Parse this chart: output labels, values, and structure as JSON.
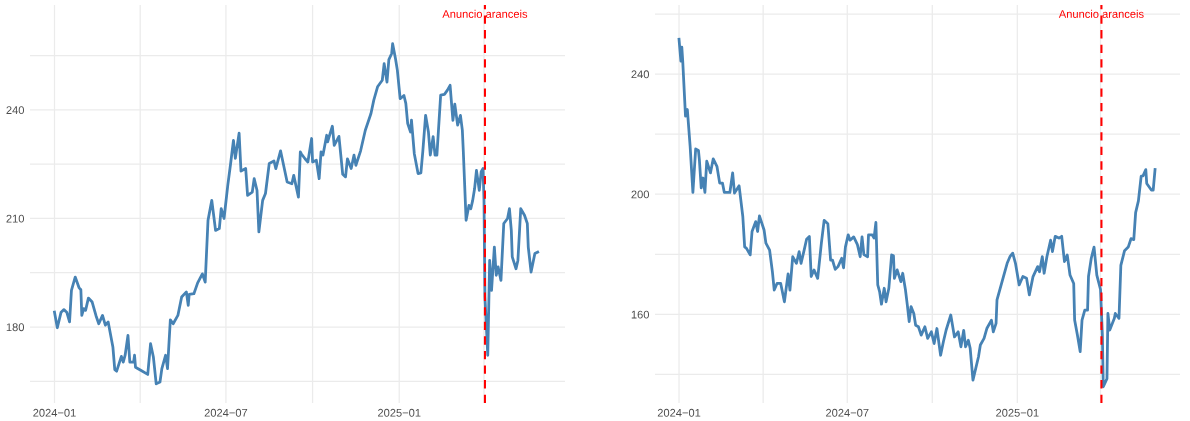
{
  "chart_data": [
    {
      "type": "line",
      "x": [
        "2024-01-01",
        "2024-01-04",
        "2024-01-08",
        "2024-01-11",
        "2024-01-14",
        "2024-01-17",
        "2024-01-19",
        "2024-01-23",
        "2024-01-27",
        "2024-01-29",
        "2024-01-30",
        "2024-02-01",
        "2024-02-03",
        "2024-02-06",
        "2024-02-10",
        "2024-02-14",
        "2024-02-17",
        "2024-02-21",
        "2024-02-24",
        "2024-02-27",
        "2024-03-03",
        "2024-03-05",
        "2024-03-07",
        "2024-03-12",
        "2024-03-14",
        "2024-03-16",
        "2024-03-19",
        "2024-03-21",
        "2024-03-25",
        "2024-03-26",
        "2024-03-27",
        "2024-04-02",
        "2024-04-09",
        "2024-04-12",
        "2024-04-15",
        "2024-04-18",
        "2024-04-22",
        "2024-04-24",
        "2024-04-28",
        "2024-04-30",
        "2024-05-03",
        "2024-05-06",
        "2024-05-11",
        "2024-05-15",
        "2024-05-20",
        "2024-05-22",
        "2024-05-23",
        "2024-05-28",
        "2024-06-01",
        "2024-06-06",
        "2024-06-09",
        "2024-06-12",
        "2024-06-16",
        "2024-06-20",
        "2024-06-24",
        "2024-06-26",
        "2024-06-29",
        "2024-07-03",
        "2024-07-06",
        "2024-07-09",
        "2024-07-11",
        "2024-07-15",
        "2024-07-17",
        "2024-07-22",
        "2024-07-24",
        "2024-07-29",
        "2024-07-31",
        "2024-08-03",
        "2024-08-05",
        "2024-08-09",
        "2024-08-12",
        "2024-08-16",
        "2024-08-21",
        "2024-08-23",
        "2024-08-28",
        "2024-09-04",
        "2024-09-09",
        "2024-09-11",
        "2024-09-16",
        "2024-09-18",
        "2024-09-19",
        "2024-09-23",
        "2024-09-26",
        "2024-09-30",
        "2024-10-01",
        "2024-10-05",
        "2024-10-08",
        "2024-10-10",
        "2024-10-12",
        "2024-10-16",
        "2024-10-17",
        "2024-10-22",
        "2024-10-24",
        "2024-10-29",
        "2024-11-02",
        "2024-11-05",
        "2024-11-07",
        "2024-11-11",
        "2024-11-14",
        "2024-11-16",
        "2024-11-21",
        "2024-11-26",
        "2024-12-02",
        "2024-12-05",
        "2024-12-09",
        "2024-12-14",
        "2024-12-16",
        "2024-12-19",
        "2024-12-21",
        "2024-12-24",
        "2024-12-25",
        "2024-12-28",
        "2024-12-30",
        "2025-01-02",
        "2025-01-06",
        "2025-01-08",
        "2025-01-10",
        "2025-01-13",
        "2025-01-14",
        "2025-01-17",
        "2025-01-21",
        "2025-01-24",
        "2025-01-26",
        "2025-01-29",
        "2025-02-01",
        "2025-02-03",
        "2025-02-06",
        "2025-02-08",
        "2025-02-10",
        "2025-02-14",
        "2025-02-18",
        "2025-02-21",
        "2025-02-24",
        "2025-02-27",
        "2025-03-01",
        "2025-03-04",
        "2025-03-07",
        "2025-03-09",
        "2025-03-10",
        "2025-03-13",
        "2025-03-16",
        "2025-03-18",
        "2025-03-20",
        "2025-03-22",
        "2025-03-24",
        "2025-03-27",
        "2025-03-29",
        "2025-03-31",
        "2025-04-01",
        "2025-04-02",
        "2025-04-05",
        "2025-04-07",
        "2025-04-09",
        "2025-04-12",
        "2025-04-14",
        "2025-04-16",
        "2025-04-19",
        "2025-04-22",
        "2025-04-26",
        "2025-04-28",
        "2025-04-30",
        "2025-05-01",
        "2025-05-05",
        "2025-05-07",
        "2025-05-10",
        "2025-05-14",
        "2025-05-17",
        "2025-05-18",
        "2025-05-21",
        "2025-05-25",
        "2025-05-28"
      ],
      "series": [
        {
          "color": "#4682b4",
          "values": [
            184.1,
            179.8,
            184.1,
            184.8,
            184.1,
            181.4,
            190.1,
            193.8,
            190.9,
            190.3,
            183.2,
            185.1,
            184.6,
            188.0,
            186.9,
            183.2,
            180.9,
            183.2,
            180.5,
            181.4,
            174.5,
            168.2,
            167.8,
            171.9,
            170.3,
            172.2,
            177.7,
            170.3,
            170.3,
            172.2,
            168.9,
            168.0,
            166.9,
            175.4,
            171.7,
            164.3,
            164.8,
            168.5,
            172.2,
            168.5,
            182.0,
            180.9,
            183.2,
            188.3,
            189.7,
            186.0,
            189.0,
            189.2,
            192.2,
            194.7,
            192.4,
            209.5,
            215.0,
            206.7,
            207.2,
            212.7,
            210.0,
            219.2,
            225.2,
            231.6,
            226.6,
            233.6,
            223.1,
            223.8,
            216.4,
            217.3,
            221.0,
            217.8,
            206.3,
            215.0,
            216.9,
            225.2,
            225.9,
            223.8,
            228.7,
            220.1,
            219.6,
            221.9,
            215.9,
            228.4,
            227.9,
            226.5,
            225.6,
            232.1,
            225.6,
            226.1,
            221.0,
            228.4,
            227.5,
            233.0,
            231.2,
            235.5,
            230.2,
            232.7,
            222.2,
            221.5,
            226.5,
            223.8,
            227.5,
            224.7,
            228.7,
            234.4,
            239.0,
            242.7,
            246.4,
            248.2,
            252.8,
            247.7,
            253.9,
            255.6,
            258.3,
            254.2,
            251.0,
            243.1,
            244.0,
            241.8,
            236.2,
            233.9,
            237.2,
            227.9,
            222.4,
            222.6,
            228.4,
            238.5,
            233.9,
            227.5,
            232.6,
            227.5,
            227.5,
            244.1,
            244.3,
            245.4,
            246.8,
            237.1,
            241.6,
            235.8,
            238.5,
            234.4,
            228.8,
            209.5,
            213.6,
            212.7,
            215.0,
            218.2,
            223.3,
            217.8,
            222.9,
            223.8,
            215.0,
            188.3,
            172.2,
            198.4,
            190.1,
            202.1,
            194.3,
            196.6,
            192.9,
            208.6,
            210.0,
            212.7,
            206.7,
            199.4,
            196.1,
            198.4,
            212.7,
            210.9,
            208.6,
            202.1,
            195.2,
            200.3,
            200.7
          ]
        }
      ],
      "xlim": [
        "2023-12-06",
        "2025-06-26"
      ],
      "xticks": [
        {
          "value": "2024-01",
          "label": "2024−01"
        },
        {
          "value": "2024-04",
          "label": null
        },
        {
          "value": "2024-07",
          "label": "2024−07"
        },
        {
          "value": "2024-10",
          "label": null
        },
        {
          "value": "2025-01",
          "label": "2025−01"
        },
        {
          "value": "2025-04",
          "label": null
        }
      ],
      "ylim": [
        159,
        269
      ],
      "yticks": [
        {
          "value": 165,
          "label": null
        },
        180,
        {
          "value": 195,
          "label": null
        },
        210,
        {
          "value": 225,
          "label": null
        },
        240,
        {
          "value": 255,
          "label": null
        }
      ],
      "grid": true,
      "line_style": "solid",
      "ref_lines": [
        {
          "axis": "x",
          "value": "2025-04-02",
          "label": "Anuncio aranceis",
          "color": "#ff0000",
          "line_style": "dashed"
        }
      ]
    },
    {
      "type": "line",
      "x": [
        "2024-01-01",
        "2024-01-03",
        "2024-01-04",
        "2024-01-05",
        "2024-01-08",
        "2024-01-10",
        "2024-01-13",
        "2024-01-16",
        "2024-01-19",
        "2024-01-22",
        "2024-01-23",
        "2024-01-25",
        "2024-01-27",
        "2024-01-29",
        "2024-01-31",
        "2024-02-04",
        "2024-02-07",
        "2024-02-11",
        "2024-02-14",
        "2024-02-17",
        "2024-02-19",
        "2024-02-25",
        "2024-02-28",
        "2024-03-01",
        "2024-03-06",
        "2024-03-10",
        "2024-03-12",
        "2024-03-14",
        "2024-03-18",
        "2024-03-20",
        "2024-03-24",
        "2024-03-26",
        "2024-03-28",
        "2024-04-02",
        "2024-04-04",
        "2024-04-08",
        "2024-04-11",
        "2024-04-13",
        "2024-04-16",
        "2024-04-20",
        "2024-04-24",
        "2024-04-28",
        "2024-04-30",
        "2024-05-03",
        "2024-05-07",
        "2024-05-10",
        "2024-05-12",
        "2024-05-15",
        "2024-05-18",
        "2024-05-21",
        "2024-05-23",
        "2024-05-26",
        "2024-05-30",
        "2024-06-03",
        "2024-06-06",
        "2024-06-10",
        "2024-06-13",
        "2024-06-15",
        "2024-06-18",
        "2024-06-21",
        "2024-06-25",
        "2024-06-27",
        "2024-06-29",
        "2024-07-02",
        "2024-07-04",
        "2024-07-08",
        "2024-07-12",
        "2024-07-15",
        "2024-07-17",
        "2024-07-19",
        "2024-07-23",
        "2024-07-24",
        "2024-07-28",
        "2024-07-30",
        "2024-08-01",
        "2024-08-03",
        "2024-08-05",
        "2024-08-07",
        "2024-08-10",
        "2024-08-12",
        "2024-08-15",
        "2024-08-18",
        "2024-08-20",
        "2024-08-21",
        "2024-08-24",
        "2024-08-28",
        "2024-08-30",
        "2024-09-02",
        "2024-09-04",
        "2024-09-06",
        "2024-09-08",
        "2024-09-11",
        "2024-09-13",
        "2024-09-16",
        "2024-09-19",
        "2024-09-23",
        "2024-09-26",
        "2024-09-30",
        "2024-10-03",
        "2024-10-06",
        "2024-10-10",
        "2024-10-13",
        "2024-10-16",
        "2024-10-21",
        "2024-10-25",
        "2024-10-29",
        "2024-11-01",
        "2024-11-04",
        "2024-11-06",
        "2024-11-09",
        "2024-11-11",
        "2024-11-14",
        "2024-11-20",
        "2024-11-22",
        "2024-11-26",
        "2024-11-29",
        "2024-12-04",
        "2024-12-06",
        "2024-12-09",
        "2024-12-10",
        "2024-12-17",
        "2024-12-21",
        "2024-12-24",
        "2024-12-27",
        "2024-12-30",
        "2025-01-03",
        "2025-01-07",
        "2025-01-11",
        "2025-01-14",
        "2025-01-18",
        "2025-01-23",
        "2025-01-25",
        "2025-01-28",
        "2025-01-30",
        "2025-02-02",
        "2025-02-06",
        "2025-02-08",
        "2025-02-11",
        "2025-02-15",
        "2025-02-18",
        "2025-02-21",
        "2025-02-24",
        "2025-02-27",
        "2025-03-03",
        "2025-03-04",
        "2025-03-07",
        "2025-03-10",
        "2025-03-12",
        "2025-03-15",
        "2025-03-18",
        "2025-03-19",
        "2025-03-22",
        "2025-03-25",
        "2025-03-28",
        "2025-04-01",
        "2025-04-03",
        "2025-04-04",
        "2025-04-08",
        "2025-04-09",
        "2025-04-11",
        "2025-04-16",
        "2025-04-17",
        "2025-04-21",
        "2025-04-23",
        "2025-04-27",
        "2025-05-01",
        "2025-05-04",
        "2025-05-07",
        "2025-05-09",
        "2025-05-12",
        "2025-05-15",
        "2025-05-17",
        "2025-05-20",
        "2025-05-21",
        "2025-05-26",
        "2025-05-28",
        "2025-05-30"
      ],
      "series": [
        {
          "color": "#4682b4",
          "values": [
            251.6,
            244.3,
            249.0,
            244.3,
            226.0,
            228.2,
            216.0,
            200.6,
            215.1,
            214.6,
            211.5,
            202.1,
            205.4,
            200.6,
            211.0,
            207.1,
            211.8,
            209.3,
            203.7,
            203.7,
            200.6,
            200.6,
            207.1,
            200.4,
            202.8,
            192.6,
            182.5,
            182.0,
            179.8,
            187.6,
            190.9,
            187.6,
            192.8,
            188.1,
            183.7,
            181.4,
            174.2,
            168.1,
            170.3,
            170.3,
            164.2,
            173.5,
            168.1,
            179.2,
            177.0,
            180.9,
            177.0,
            180.9,
            185.0,
            185.9,
            172.6,
            174.8,
            172.0,
            183.7,
            191.3,
            190.2,
            178.1,
            178.1,
            175.0,
            175.9,
            178.7,
            175.5,
            182.4,
            186.5,
            184.7,
            185.8,
            183.2,
            179.2,
            185.8,
            179.9,
            179.2,
            186.5,
            186.5,
            185.4,
            190.6,
            169.8,
            167.6,
            163.4,
            168.7,
            164.2,
            168.7,
            179.8,
            179.5,
            172.0,
            174.8,
            170.9,
            173.7,
            168.1,
            163.1,
            157.6,
            162.6,
            160.3,
            156.4,
            155.9,
            153.1,
            155.9,
            152.0,
            154.2,
            150.3,
            155.3,
            146.4,
            150.9,
            154.8,
            159.8,
            152.5,
            154.2,
            149.2,
            154.7,
            149.2,
            151.4,
            148.7,
            138.1,
            145.9,
            149.8,
            152.0,
            155.3,
            158.1,
            154.2,
            157.0,
            164.8,
            172.6,
            177.0,
            179.2,
            180.4,
            177.0,
            169.8,
            172.6,
            172.0,
            166.5,
            172.6,
            175.9,
            174.2,
            179.2,
            173.7,
            179.2,
            184.7,
            180.9,
            186.0,
            185.4,
            186.0,
            177.6,
            179.8,
            173.1,
            170.3,
            158.1,
            153.1,
            147.6,
            158.1,
            161.4,
            161.4,
            172.6,
            178.7,
            182.4,
            173.1,
            168.3,
            153.1,
            135.9,
            138.6,
            160.3,
            154.8,
            158.7,
            160.3,
            158.7,
            176.3,
            181.2,
            182.4,
            185.2,
            184.9,
            193.9,
            197.8,
            206.0,
            206.1,
            208.2,
            203.6,
            201.4,
            201.4,
            208.2
          ]
        }
      ],
      "xlim": [
        "2023-12-06",
        "2025-06-26"
      ],
      "xticks": [
        {
          "value": "2024-01",
          "label": "2024−01"
        },
        {
          "value": "2024-04",
          "label": null
        },
        {
          "value": "2024-07",
          "label": "2024−07"
        },
        {
          "value": "2024-10",
          "label": null
        },
        {
          "value": "2025-01",
          "label": "2025−01"
        },
        {
          "value": "2025-04",
          "label": null
        }
      ],
      "ylim": [
        130.5,
        263
      ],
      "yticks": [
        {
          "value": 140,
          "label": null
        },
        160,
        {
          "value": 180,
          "label": null
        },
        200,
        {
          "value": 220,
          "label": null
        },
        240,
        {
          "value": 260,
          "label": null
        }
      ],
      "grid": true,
      "line_style": "solid",
      "ref_lines": [
        {
          "axis": "x",
          "value": "2025-04-02",
          "label": "Anuncio aranceis",
          "color": "#ff0000",
          "line_style": "dashed"
        }
      ]
    }
  ]
}
